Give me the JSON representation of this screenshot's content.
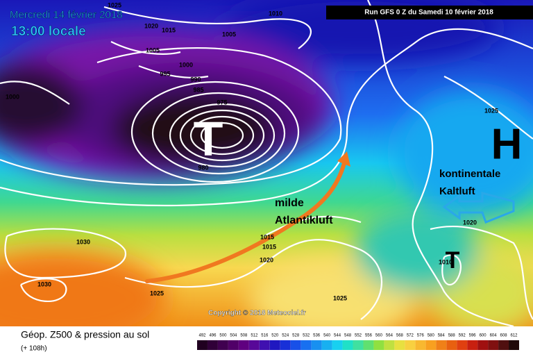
{
  "header": {
    "date": "Mercredi 14 février 2018",
    "time": "13:00 locale",
    "run": "Run GFS 0 Z du Samedi 10 février 2018"
  },
  "footer": {
    "title": "Géop. Z500 & pression au sol",
    "lead": "(+ 108h)",
    "copyright": "Copyright © 2018 Meteociel.fr"
  },
  "annotations": {
    "low_main": "T",
    "low_south": "T",
    "high": "H",
    "mild_1": "milde",
    "mild_2": "Atlantikluft",
    "cold_1": "kontinentale",
    "cold_2": "Kaltluft"
  },
  "isobar_labels": [
    1025,
    1020,
    1015,
    1010,
    1005,
    1005,
    1000,
    995,
    990,
    985,
    1000,
    975,
    980,
    1025,
    1030,
    1030,
    1025,
    1015,
    1015,
    1020,
    1025,
    1020,
    1010
  ],
  "scale_labels": [
    492,
    496,
    500,
    504,
    508,
    512,
    516,
    520,
    524,
    528,
    532,
    536,
    540,
    544,
    548,
    552,
    556,
    560,
    564,
    568,
    572,
    576,
    580,
    584,
    588,
    592,
    596,
    600,
    604,
    608,
    612
  ]
}
